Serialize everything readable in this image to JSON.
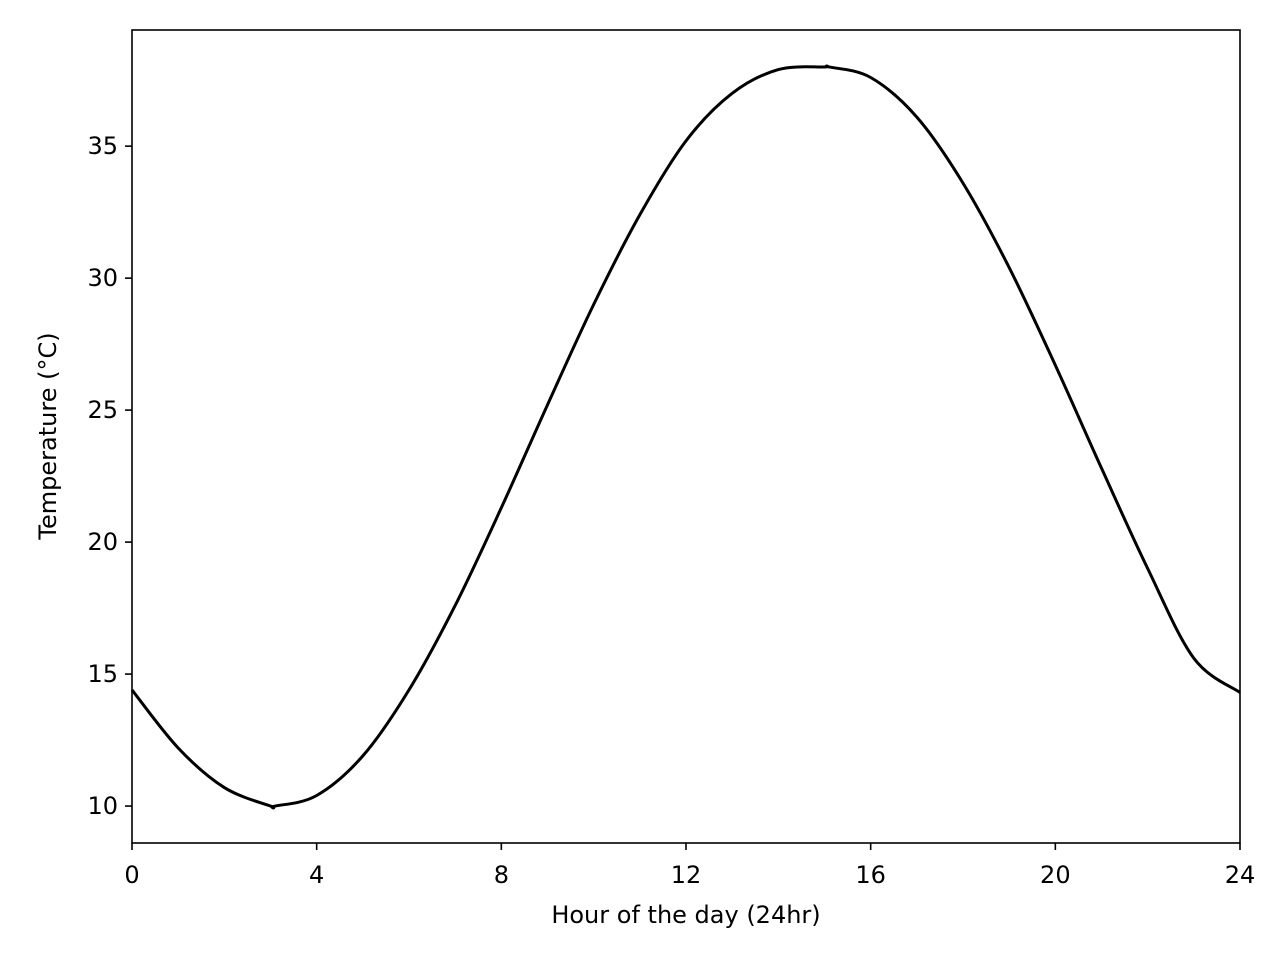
{
  "chart_data": {
    "type": "line",
    "title": "",
    "xlabel": "Hour of the day (24hr)",
    "ylabel": "Temperature ($^\\circ$C)",
    "ylabel_display": "Temperature (°C)",
    "xlim": [
      0,
      24
    ],
    "ylim": [
      8.6,
      39.4
    ],
    "xticks": [
      0,
      4,
      8,
      12,
      16,
      20,
      24
    ],
    "yticks": [
      10,
      15,
      20,
      25,
      30,
      35
    ],
    "grid": false,
    "legend": "none",
    "series": [
      {
        "color": "#000000",
        "x": [
          0,
          1,
          2,
          3,
          3.1,
          4,
          5,
          6,
          7,
          8,
          9,
          10,
          11,
          12,
          13,
          14,
          15,
          15.1,
          16,
          17,
          18,
          19,
          20,
          21,
          22,
          23,
          24
        ],
        "y": [
          14.4,
          12.2,
          10.7,
          10.0,
          10.0,
          10.4,
          11.9,
          14.4,
          17.6,
          21.3,
          25.2,
          29.0,
          32.4,
          35.2,
          37.0,
          37.9,
          38.0,
          38.0,
          37.6,
          36.1,
          33.6,
          30.4,
          26.7,
          22.8,
          19.0,
          15.6,
          14.3
        ]
      }
    ]
  }
}
